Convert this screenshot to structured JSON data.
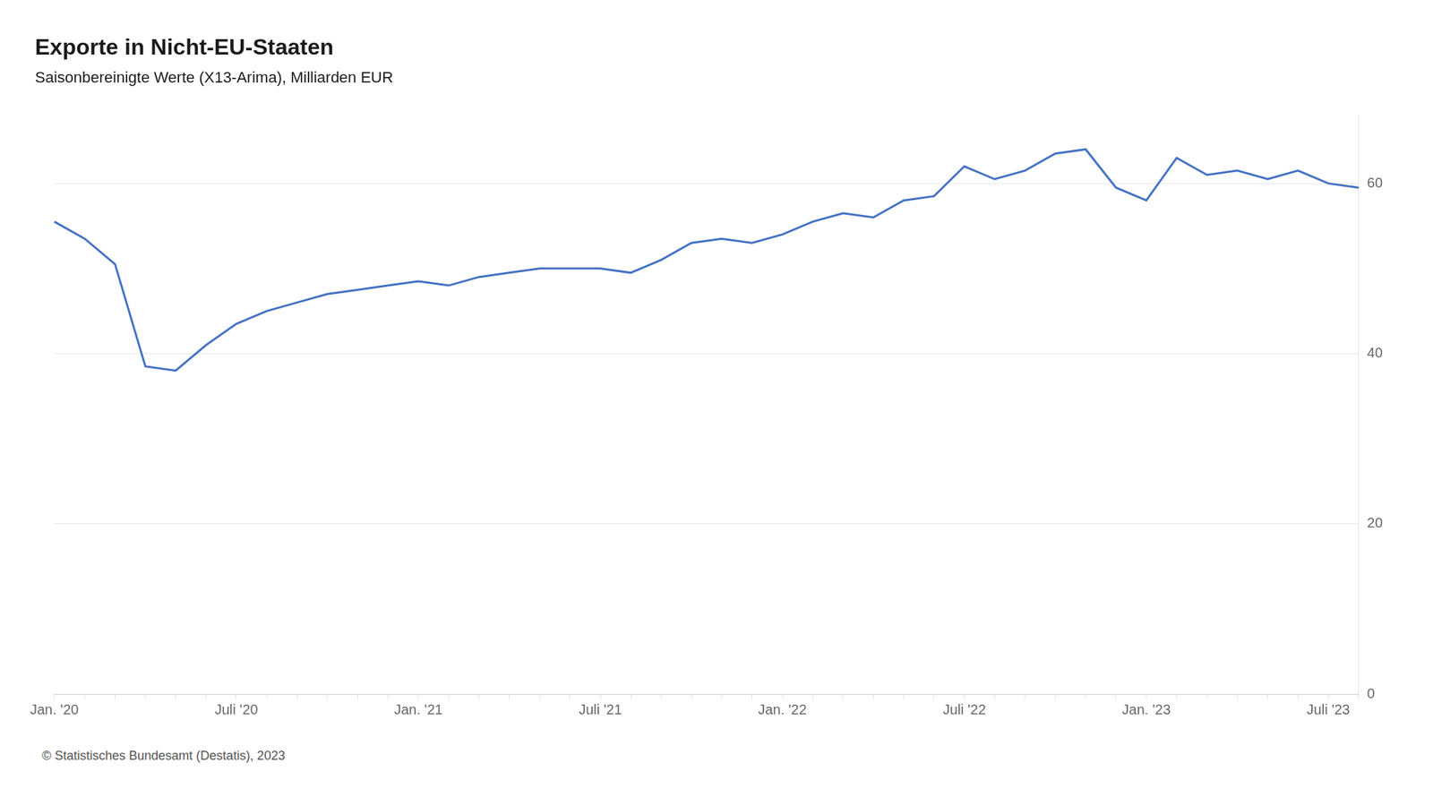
{
  "chart_data": {
    "type": "line",
    "title": "Exporte in Nicht-EU-Staaten",
    "subtitle": "Saisonbereinigte Werte (X13-Arima), Milliarden EUR",
    "footnote": "© Statistisches Bundesamt (Destatis), 2023",
    "categories": [
      "Jan. '20",
      null,
      null,
      null,
      null,
      null,
      "Juli '20",
      null,
      null,
      null,
      null,
      null,
      "Jan. '21",
      null,
      null,
      null,
      null,
      null,
      "Juli '21",
      null,
      null,
      null,
      null,
      null,
      "Jan. '22",
      null,
      null,
      null,
      null,
      null,
      "Juli '22",
      null,
      null,
      null,
      null,
      null,
      "Jan. '23",
      null,
      null,
      null,
      null,
      null,
      "Juli '23",
      null
    ],
    "values": [
      55.5,
      53.5,
      50.5,
      38.5,
      38.0,
      41.0,
      43.5,
      45.0,
      46.0,
      47.0,
      47.5,
      48.0,
      48.5,
      48.0,
      49.0,
      49.5,
      50.0,
      50.0,
      50.0,
      49.5,
      51.0,
      53.0,
      53.5,
      53.0,
      54.0,
      55.5,
      56.5,
      56.0,
      58.0,
      58.5,
      62.0,
      60.5,
      61.5,
      63.5,
      64.0,
      59.5,
      58.0,
      63.0,
      61.0,
      61.5,
      60.5,
      61.5,
      60.0,
      59.5
    ],
    "color": "#4472C4",
    "ylim": [
      0,
      68
    ],
    "yticks": [
      0,
      20,
      40,
      60
    ],
    "grid": true
  }
}
